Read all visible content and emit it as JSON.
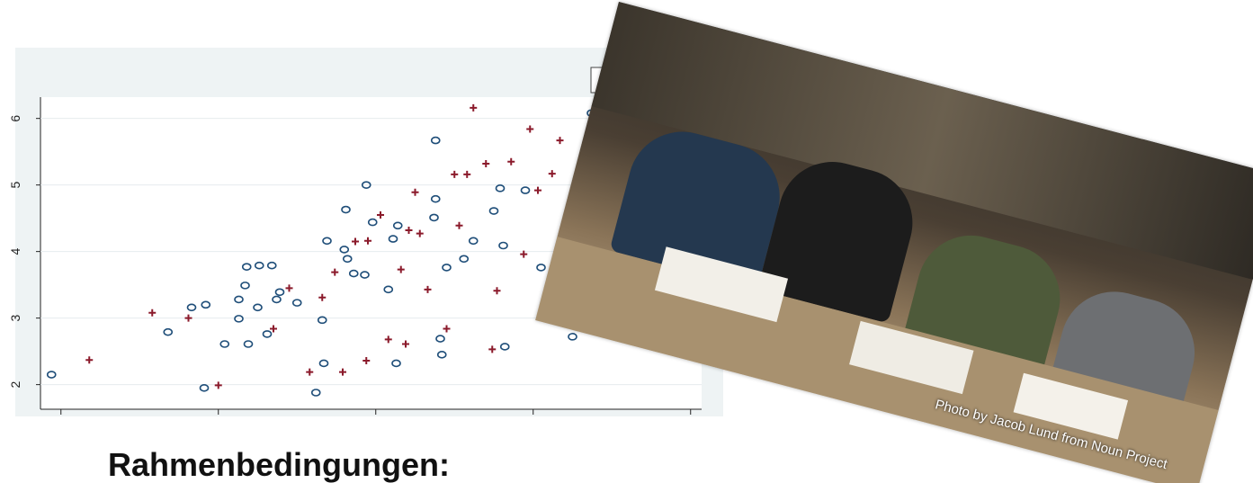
{
  "chart_data": {
    "type": "scatter",
    "xlim": [
      0.87,
      5.07
    ],
    "ylim": [
      1.63,
      6.32
    ],
    "xticks": [
      1,
      2,
      3,
      4,
      5
    ],
    "yticks": [
      2,
      3,
      4,
      5,
      6
    ],
    "grid": true,
    "series": [
      {
        "color": "#1f4e79",
        "marker": "circle",
        "x": [
          0.94,
          1.68,
          1.83,
          1.92,
          2.04,
          1.91,
          2.13,
          2.13,
          2.17,
          2.18,
          2.26,
          2.34,
          2.19,
          2.25,
          2.31,
          2.39,
          2.37,
          2.5,
          2.62,
          2.66,
          2.67,
          2.69,
          2.8,
          2.82,
          2.86,
          2.81,
          2.94,
          2.98,
          2.93,
          3.08,
          3.11,
          3.13,
          3.14,
          3.38,
          3.38,
          3.37,
          3.41,
          3.42,
          3.45,
          3.56,
          3.62,
          3.75,
          3.79,
          3.82,
          3.95,
          3.81,
          4.05,
          4.25,
          4.37
        ],
        "values": [
          2.15,
          2.79,
          3.16,
          3.2,
          2.61,
          1.95,
          3.28,
          2.99,
          3.49,
          3.77,
          3.79,
          3.79,
          2.61,
          3.16,
          2.76,
          3.39,
          3.28,
          3.23,
          1.88,
          2.97,
          2.32,
          4.16,
          4.03,
          3.89,
          3.67,
          4.63,
          5.0,
          4.44,
          3.65,
          3.43,
          4.19,
          2.32,
          4.39,
          5.67,
          4.79,
          4.51,
          2.69,
          2.45,
          3.76,
          3.89,
          4.16,
          4.61,
          4.95,
          2.57,
          4.92,
          4.09,
          3.76,
          2.72,
          6.08
        ]
      },
      {
        "color": "#8b1a2b",
        "marker": "cross",
        "x": [
          1.18,
          1.58,
          1.81,
          2.0,
          2.35,
          2.45,
          2.58,
          2.66,
          2.74,
          2.79,
          2.94,
          2.95,
          3.03,
          3.08,
          3.16,
          3.19,
          3.25,
          3.28,
          3.33,
          3.45,
          3.5,
          3.58,
          3.62,
          3.7,
          3.74,
          3.77,
          3.86,
          3.98,
          4.12,
          4.17,
          4.03,
          3.94,
          3.53,
          2.87,
          3.21
        ],
        "values": [
          2.37,
          3.08,
          3.0,
          1.99,
          2.84,
          3.45,
          2.19,
          3.31,
          3.69,
          2.19,
          2.36,
          4.16,
          4.55,
          2.68,
          3.73,
          2.61,
          4.89,
          4.27,
          3.43,
          2.84,
          5.16,
          5.16,
          6.16,
          5.32,
          2.53,
          3.41,
          5.35,
          5.84,
          5.17,
          5.67,
          4.92,
          3.96,
          4.39,
          4.15,
          4.32
        ]
      }
    ]
  },
  "photo": {
    "caption": "Photo by Jacob Lund from Noun Project"
  },
  "heading": "Rahmenbedingungen:"
}
